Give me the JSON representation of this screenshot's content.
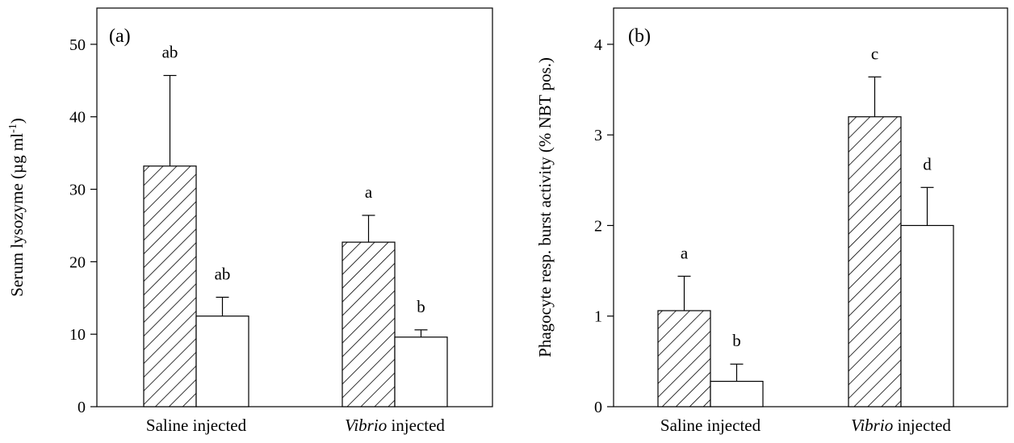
{
  "chart_data": [
    {
      "type": "bar",
      "panel_label": "(a)",
      "ylabel": "Serum lysozyme (µg ml⁻¹)",
      "ylabel_main": "Serum lysozyme (µg ml",
      "ylabel_sup": "-1",
      "ylabel_end": ")",
      "xlabel": "",
      "ylim": [
        0,
        55
      ],
      "yticks": [
        "0",
        "10",
        "20",
        "30",
        "40",
        "50"
      ],
      "categories": [
        {
          "plain": "Saline injected",
          "italic": "",
          "rest": ""
        },
        {
          "plain": "",
          "italic": "Vibrio",
          "rest": " injected"
        }
      ],
      "series": [
        {
          "pattern": "hatched",
          "values": [
            33.2,
            22.7
          ],
          "errors": [
            12.5,
            3.7
          ],
          "letters": [
            "ab",
            "a"
          ]
        },
        {
          "pattern": "open",
          "values": [
            12.5,
            9.6
          ],
          "errors": [
            2.6,
            1.0
          ],
          "letters": [
            "ab",
            "b"
          ]
        }
      ]
    },
    {
      "type": "bar",
      "panel_label": "(b)",
      "ylabel": "Phagocyte resp. burst activity (% NBT pos.)",
      "ylabel_main": "Phagocyte resp. burst activity (% NBT pos.)",
      "ylabel_sup": "",
      "ylabel_end": "",
      "xlabel": "",
      "ylim": [
        0,
        4.4
      ],
      "yticks": [
        "0",
        "1",
        "2",
        "3",
        "4"
      ],
      "categories": [
        {
          "plain": "Saline injected",
          "italic": "",
          "rest": ""
        },
        {
          "plain": "",
          "italic": "Vibrio",
          "rest": " injected"
        }
      ],
      "series": [
        {
          "pattern": "hatched",
          "values": [
            1.06,
            3.2
          ],
          "errors": [
            0.38,
            0.44
          ],
          "letters": [
            "a",
            "c"
          ]
        },
        {
          "pattern": "open",
          "values": [
            0.28,
            2.0
          ],
          "errors": [
            0.19,
            0.42
          ],
          "letters": [
            "b",
            "d"
          ]
        }
      ]
    }
  ]
}
